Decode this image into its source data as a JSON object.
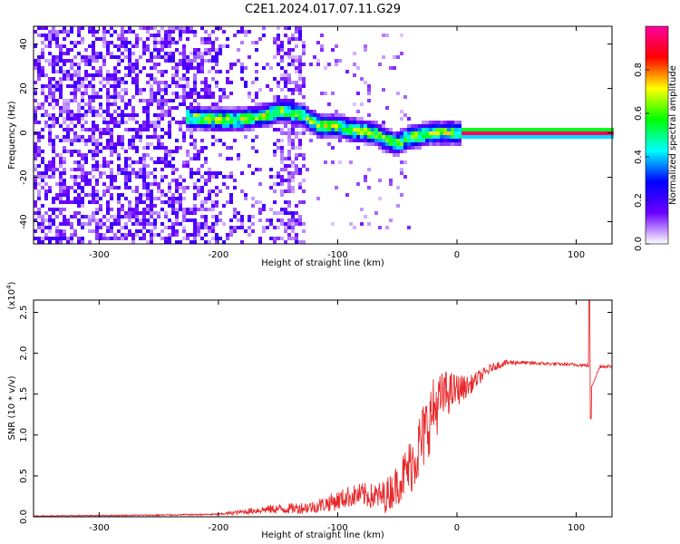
{
  "title": "C2E1.2024.017.07.11.G29",
  "chart_data": [
    {
      "type": "heatmap",
      "xlabel": "Height of straight line (km)",
      "ylabel": "Frequency (Hz)",
      "xlim": [
        -355,
        130
      ],
      "ylim": [
        -50,
        48
      ],
      "x_ticks": [
        -300,
        -200,
        -100,
        0,
        100
      ],
      "x_tick_labels": [
        "-300",
        "-200",
        "-100",
        "0",
        "100"
      ],
      "y_ticks": [
        -40,
        -20,
        0,
        20,
        40
      ],
      "y_tick_labels": [
        "-40",
        "-20",
        "0",
        "20",
        "40"
      ],
      "ridge": {
        "x": [
          -225,
          -200,
          -180,
          -160,
          -145,
          -130,
          -115,
          -100,
          -85,
          -70,
          -60,
          -50,
          -40,
          -30,
          -20,
          -10,
          0,
          50,
          100,
          130
        ],
        "y": [
          7,
          6,
          6,
          8,
          10,
          8,
          3,
          3,
          1,
          0,
          -3,
          -5,
          -2,
          -1,
          0,
          0,
          0,
          0,
          0,
          0
        ]
      },
      "colorbar": {
        "label": "Normalized spectral amplitude",
        "range": [
          0,
          1
        ],
        "ticks": [
          0.0,
          0.2,
          0.4,
          0.6,
          0.8
        ],
        "tick_labels": [
          "0.0",
          "0.2",
          "0.4",
          "0.6",
          "0.8"
        ],
        "colormap": [
          "#ffffff",
          "#6a00ff",
          "#0000ff",
          "#00ffff",
          "#00ff00",
          "#ffff00",
          "#ff0000",
          "#ff00a0"
        ]
      }
    },
    {
      "type": "line",
      "xlabel": "Height of straight line (km)",
      "ylabel": "SNR (10 * v/v)",
      "scale_note": "(x10",
      "scale_exp": "4",
      "scale_close": ")",
      "xlim": [
        -355,
        130
      ],
      "ylim": [
        0,
        2.65
      ],
      "x_ticks": [
        -300,
        -200,
        -100,
        0,
        100
      ],
      "x_tick_labels": [
        "-300",
        "-200",
        "-100",
        "0",
        "100"
      ],
      "y_ticks": [
        0.0,
        0.5,
        1.0,
        1.5,
        2.0,
        2.5
      ],
      "y_tick_labels": [
        "0.0",
        "0.5",
        "1.0",
        "1.5",
        "2.0",
        "2.5"
      ],
      "color": "#e8282a",
      "envelope": {
        "x": [
          -355,
          -300,
          -250,
          -200,
          -180,
          -160,
          -140,
          -120,
          -100,
          -90,
          -80,
          -70,
          -60,
          -50,
          -40,
          -30,
          -20,
          -10,
          0,
          10,
          20,
          30,
          40,
          50,
          60,
          80,
          100,
          110,
          113,
          120,
          130
        ],
        "y": [
          0.01,
          0.015,
          0.02,
          0.03,
          0.06,
          0.09,
          0.1,
          0.12,
          0.2,
          0.25,
          0.27,
          0.25,
          0.25,
          0.4,
          0.6,
          0.9,
          1.3,
          1.5,
          1.55,
          1.6,
          1.72,
          1.83,
          1.88,
          1.89,
          1.88,
          1.87,
          1.86,
          1.85,
          1.6,
          1.84,
          1.84
        ]
      },
      "noise": {
        "x": [
          -355,
          -200,
          -150,
          -120,
          -100,
          -70,
          -50,
          -40,
          -30,
          -20,
          -10,
          0,
          10,
          30,
          60,
          130
        ],
        "amp": [
          0.005,
          0.01,
          0.06,
          0.08,
          0.12,
          0.16,
          0.25,
          0.35,
          0.45,
          0.4,
          0.3,
          0.2,
          0.12,
          0.05,
          0.02,
          0.02
        ]
      },
      "spike": {
        "x": 111,
        "peak": 2.65,
        "trough": 1.2
      }
    }
  ]
}
